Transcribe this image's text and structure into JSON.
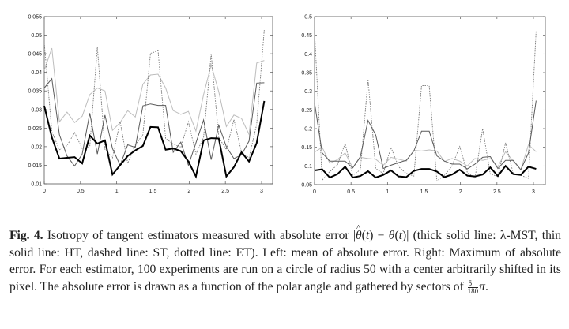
{
  "figure": {
    "label": "Fig. 4.",
    "caption_parts": {
      "p1": "Isotropy of tangent estimators measured with absolute error |",
      "theta_hat": "θ",
      "p2": "(",
      "t1": "t",
      "p3": ") − ",
      "theta": "θ",
      "p4": "(",
      "t2": "t",
      "p5": ")| (thick solid line: λ-MST, thin solid line: HT, dashed line: ST, dotted line: ET). Left: mean of absolute error. Right: Maximum of absolute error. For each estimator, 100 experiments are run on a circle of radius 50 with a center arbitrarily shifted in its pixel. The absolute error is drawn as a function of the polar angle and gathered by sectors of ",
      "frac_num": "5",
      "frac_den": "180",
      "pi": "π",
      "end": "."
    }
  },
  "chart_data": [
    {
      "type": "line",
      "title": "",
      "xlabel": "",
      "ylabel": "",
      "xlim": [
        0,
        3.14
      ],
      "ylim": [
        0.01,
        0.055
      ],
      "xticks": [
        "0",
        "0.5",
        "1",
        "1.5",
        "2",
        "2.5",
        "3"
      ],
      "xtick_values": [
        0,
        0.5,
        1,
        1.5,
        2,
        2.5,
        3
      ],
      "yticks": [
        "0.01",
        "0.015",
        "0.02",
        "0.025",
        "0.03",
        "0.035",
        "0.04",
        "0.045",
        "0.05",
        "0.055"
      ],
      "ytick_values": [
        0.01,
        0.015,
        0.02,
        0.025,
        0.03,
        0.035,
        0.04,
        0.045,
        0.05,
        0.055
      ],
      "grid": false,
      "x": [
        0,
        0.105,
        0.209,
        0.314,
        0.419,
        0.524,
        0.628,
        0.733,
        0.838,
        0.942,
        1.047,
        1.152,
        1.257,
        1.361,
        1.466,
        1.571,
        1.676,
        1.78,
        1.885,
        1.99,
        2.094,
        2.199,
        2.304,
        2.409,
        2.513,
        2.618,
        2.723,
        2.827,
        2.932,
        3.037
      ],
      "series": [
        {
          "name": "ST",
          "style": "dashed",
          "color": "#bdbdbd",
          "values": [
            0.0405,
            0.0465,
            0.0267,
            0.0293,
            0.0265,
            0.0282,
            0.034,
            0.0358,
            0.035,
            0.0244,
            0.0265,
            0.0297,
            0.028,
            0.0368,
            0.0393,
            0.0395,
            0.0358,
            0.0297,
            0.0287,
            0.0295,
            0.0242,
            0.034,
            0.042,
            0.0348,
            0.0254,
            0.0285,
            0.0276,
            0.0233,
            0.0425,
            0.0432
          ]
        },
        {
          "name": "ET",
          "style": "dotted",
          "color": "#7a7a7a",
          "values": [
            0.048,
            0.024,
            0.0192,
            0.0203,
            0.0238,
            0.0195,
            0.02,
            0.0468,
            0.0193,
            0.017,
            0.0267,
            0.0155,
            0.0205,
            0.0232,
            0.0451,
            0.0458,
            0.0222,
            0.0207,
            0.0198,
            0.0267,
            0.018,
            0.0225,
            0.0449,
            0.0225,
            0.0192,
            0.0273,
            0.0185,
            0.017,
            0.026,
            0.0515
          ]
        },
        {
          "name": "HT",
          "style": "solid-thin",
          "color": "#5a5a5a",
          "values": [
            0.0358,
            0.0383,
            0.0232,
            0.0175,
            0.0148,
            0.018,
            0.029,
            0.018,
            0.0285,
            0.0195,
            0.015,
            0.0205,
            0.0198,
            0.031,
            0.0315,
            0.0311,
            0.0311,
            0.0185,
            0.0212,
            0.015,
            0.021,
            0.0272,
            0.0165,
            0.0258,
            0.02,
            0.0168,
            0.0178,
            0.0215,
            0.0371,
            0.0372
          ]
        },
        {
          "name": "λ-MST",
          "style": "solid-thick",
          "color": "#000000",
          "values": [
            0.031,
            0.0225,
            0.0168,
            0.017,
            0.0172,
            0.0155,
            0.023,
            0.0208,
            0.0217,
            0.0125,
            0.015,
            0.0175,
            0.019,
            0.0202,
            0.0253,
            0.0252,
            0.0192,
            0.0195,
            0.0188,
            0.016,
            0.012,
            0.0217,
            0.0223,
            0.0222,
            0.012,
            0.0145,
            0.0185,
            0.016,
            0.021,
            0.0323
          ]
        }
      ]
    },
    {
      "type": "line",
      "title": "",
      "xlabel": "",
      "ylabel": "",
      "xlim": [
        0,
        3.14
      ],
      "ylim": [
        0.05,
        0.5
      ],
      "xticks": [
        "0",
        "0.5",
        "1",
        "1.5",
        "2",
        "2.5",
        "3"
      ],
      "xtick_values": [
        0,
        0.5,
        1,
        1.5,
        2,
        2.5,
        3
      ],
      "yticks": [
        "0.05",
        "0.1",
        "0.15",
        "0.2",
        "0.25",
        "0.3",
        "0.35",
        "0.4",
        "0.45",
        "0.5"
      ],
      "ytick_values": [
        0.05,
        0.1,
        0.15,
        0.2,
        0.25,
        0.3,
        0.35,
        0.4,
        0.45,
        0.5
      ],
      "grid": false,
      "x": [
        0,
        0.105,
        0.209,
        0.314,
        0.419,
        0.524,
        0.628,
        0.733,
        0.838,
        0.942,
        1.047,
        1.152,
        1.257,
        1.361,
        1.466,
        1.571,
        1.676,
        1.78,
        1.885,
        1.99,
        2.094,
        2.199,
        2.304,
        2.409,
        2.513,
        2.618,
        2.723,
        2.827,
        2.932,
        3.037
      ],
      "series": [
        {
          "name": "ST",
          "style": "dashed",
          "color": "#bdbdbd",
          "values": [
            0.137,
            0.15,
            0.107,
            0.117,
            0.135,
            0.095,
            0.123,
            0.12,
            0.118,
            0.102,
            0.123,
            0.118,
            0.113,
            0.142,
            0.14,
            0.143,
            0.14,
            0.112,
            0.12,
            0.113,
            0.1,
            0.12,
            0.115,
            0.12,
            0.098,
            0.138,
            0.113,
            0.09,
            0.157,
            0.138
          ]
        },
        {
          "name": "ET",
          "style": "dotted",
          "color": "#7a7a7a",
          "values": [
            0.46,
            0.062,
            0.085,
            0.103,
            0.16,
            0.075,
            0.09,
            0.332,
            0.093,
            0.08,
            0.15,
            0.098,
            0.08,
            0.073,
            0.315,
            0.315,
            0.06,
            0.075,
            0.1,
            0.152,
            0.083,
            0.067,
            0.2,
            0.078,
            0.072,
            0.162,
            0.08,
            0.075,
            0.067,
            0.462
          ]
        },
        {
          "name": "HT",
          "style": "solid-thin",
          "color": "#5a5a5a",
          "values": [
            0.27,
            0.135,
            0.113,
            0.113,
            0.113,
            0.095,
            0.125,
            0.222,
            0.183,
            0.093,
            0.102,
            0.109,
            0.115,
            0.14,
            0.193,
            0.193,
            0.127,
            0.113,
            0.105,
            0.105,
            0.092,
            0.105,
            0.123,
            0.125,
            0.093,
            0.115,
            0.115,
            0.09,
            0.135,
            0.275
          ]
        },
        {
          "name": "λ-MST",
          "style": "solid-thick",
          "color": "#000000",
          "values": [
            0.088,
            0.091,
            0.069,
            0.078,
            0.098,
            0.069,
            0.073,
            0.086,
            0.069,
            0.076,
            0.088,
            0.072,
            0.07,
            0.087,
            0.092,
            0.092,
            0.085,
            0.07,
            0.077,
            0.09,
            0.074,
            0.072,
            0.077,
            0.096,
            0.073,
            0.1,
            0.078,
            0.076,
            0.098,
            0.092
          ]
        }
      ]
    }
  ]
}
